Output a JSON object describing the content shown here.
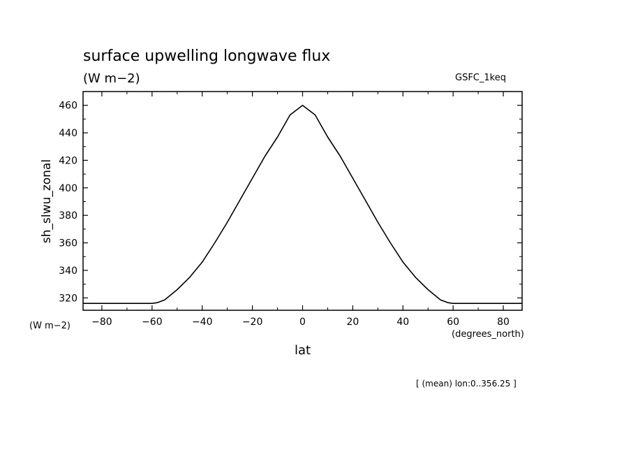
{
  "chart_data": {
    "type": "line",
    "title": "surface upwelling longwave flux",
    "subtitle": "(W m−2)",
    "dataset_label": "GSFC_1keq",
    "xlabel": "lat",
    "x_units": "(degrees_north)",
    "ylabel": "sh_slwu_zonal",
    "y_units": "(W m−2)",
    "footnote": "[ (mean) lon:0..356.25 ]",
    "xlim": [
      -87.5,
      87.5
    ],
    "ylim": [
      311,
      470
    ],
    "x_ticks": [
      -80,
      -60,
      -40,
      -20,
      0,
      20,
      40,
      60,
      80
    ],
    "x_tick_labels": [
      "−80",
      "−60",
      "−40",
      "−20",
      "0",
      "20",
      "40",
      "60",
      "80"
    ],
    "y_ticks": [
      320,
      340,
      360,
      380,
      400,
      420,
      440,
      460
    ],
    "y_tick_labels": [
      "320",
      "340",
      "360",
      "380",
      "400",
      "420",
      "440",
      "460"
    ],
    "grid": false,
    "series": [
      {
        "color": "#000000",
        "x": [
          -87.5,
          -80,
          -70,
          -60,
          -58,
          -55,
          -50,
          -45,
          -40,
          -35,
          -30,
          -25,
          -20,
          -15,
          -10,
          -5,
          0,
          5,
          10,
          15,
          20,
          25,
          30,
          35,
          40,
          45,
          50,
          55,
          58,
          60,
          70,
          80,
          87.5
        ],
        "y": [
          316,
          316,
          316,
          316,
          316.5,
          318.5,
          326,
          335,
          346,
          360,
          375,
          391,
          407,
          423,
          437,
          453,
          460,
          453,
          437,
          423,
          407,
          391,
          375,
          360,
          346,
          335,
          326,
          318.5,
          316.5,
          316,
          316,
          316,
          316
        ]
      }
    ]
  }
}
